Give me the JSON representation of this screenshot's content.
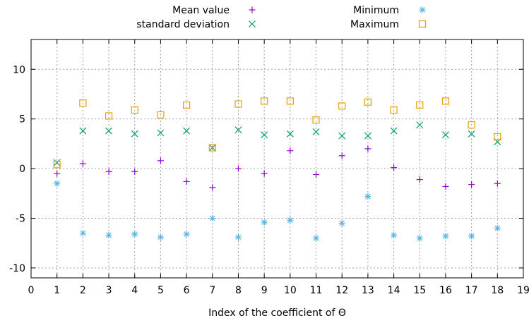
{
  "chart_data": {
    "type": "scatter",
    "title": "",
    "xlabel": "Index of the coefficient of Θ",
    "ylabel": "",
    "xlim": [
      0,
      19
    ],
    "ylim": [
      -11,
      13
    ],
    "xticks": [
      0,
      1,
      2,
      3,
      4,
      5,
      6,
      7,
      8,
      9,
      10,
      11,
      12,
      13,
      14,
      15,
      16,
      17,
      18,
      19
    ],
    "yticks": [
      -10,
      -5,
      0,
      5,
      10
    ],
    "grid": true,
    "legend_position": "top",
    "x": [
      1,
      2,
      3,
      4,
      5,
      6,
      7,
      8,
      9,
      10,
      11,
      12,
      13,
      14,
      15,
      16,
      17,
      18
    ],
    "series": [
      {
        "name": "Mean value",
        "marker": "plus",
        "color": "#9400d3",
        "values": [
          -0.5,
          0.5,
          -0.3,
          -0.3,
          0.8,
          -1.3,
          -1.9,
          0.0,
          -0.5,
          1.8,
          -0.6,
          1.3,
          2.0,
          0.1,
          -1.1,
          -1.8,
          -1.6,
          -1.5
        ]
      },
      {
        "name": "standard deviation",
        "marker": "cross",
        "color": "#009e73",
        "values": [
          0.6,
          3.8,
          3.8,
          3.5,
          3.6,
          3.8,
          2.1,
          3.9,
          3.4,
          3.5,
          3.7,
          3.3,
          3.3,
          3.8,
          4.4,
          3.4,
          3.5,
          2.7
        ]
      },
      {
        "name": "Minimum",
        "marker": "asterisk",
        "color": "#56b4e9",
        "values": [
          -1.5,
          -6.5,
          -6.7,
          -6.6,
          -6.9,
          -6.6,
          -5.0,
          -6.9,
          -5.4,
          -5.2,
          -7.0,
          -5.5,
          -2.8,
          -6.7,
          -7.0,
          -6.8,
          -6.8,
          -6.0
        ]
      },
      {
        "name": "Maximum",
        "marker": "square",
        "color": "#e69f00",
        "values": [
          0.4,
          6.6,
          5.3,
          5.9,
          5.4,
          6.4,
          2.1,
          6.5,
          6.8,
          6.8,
          4.9,
          6.3,
          6.7,
          5.9,
          6.4,
          6.8,
          4.4,
          3.2
        ]
      }
    ]
  }
}
